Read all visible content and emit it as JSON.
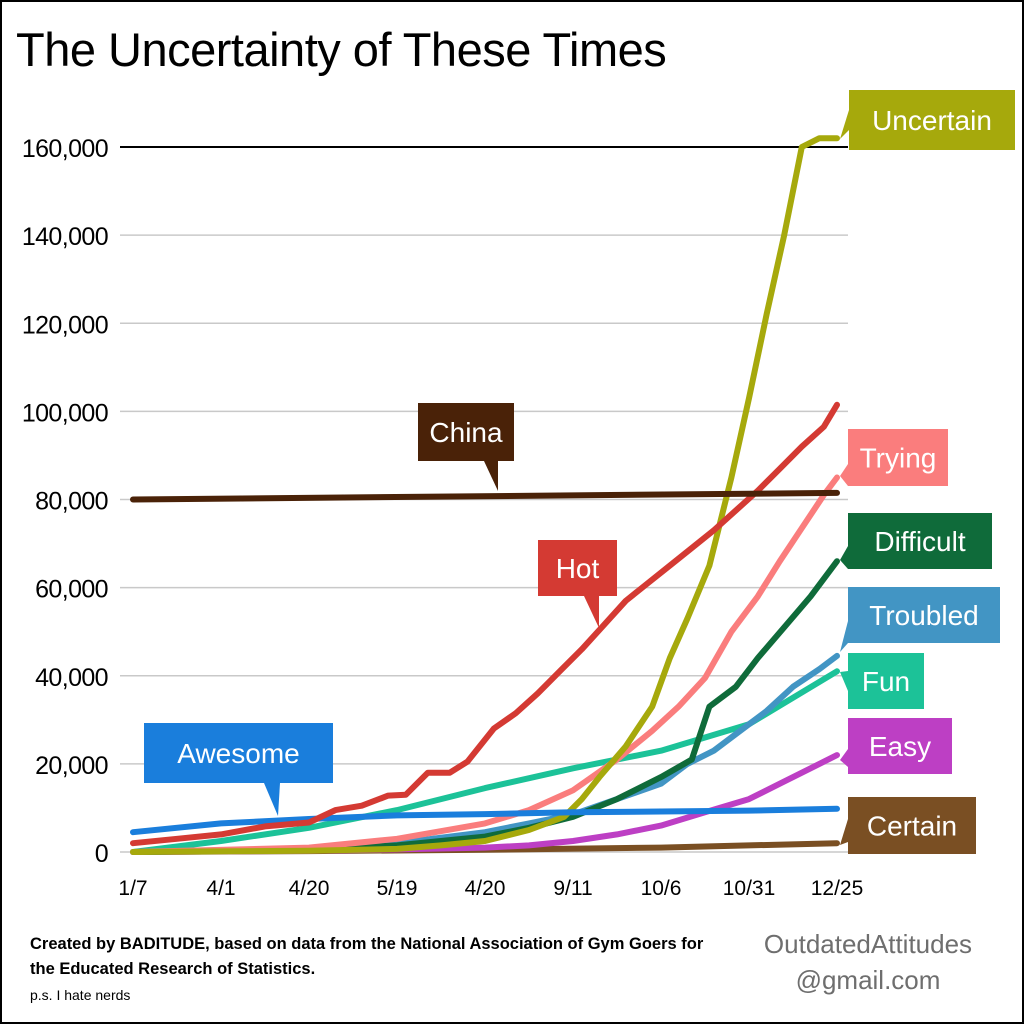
{
  "chart_data": {
    "type": "line",
    "title": "The Uncertainty of These Times",
    "xlabel": "",
    "ylabel": "",
    "categories": [
      "1/7",
      "4/1",
      "4/20",
      "5/19",
      "4/20",
      "9/11",
      "10/6",
      "10/31",
      "12/25"
    ],
    "ylim": [
      0,
      160000
    ],
    "yticks": [
      0,
      20000,
      40000,
      60000,
      80000,
      100000,
      120000,
      140000,
      160000
    ],
    "ytick_labels": [
      "0",
      "20,000",
      "40,000",
      "60,000",
      "80,000",
      "100,000",
      "120,000",
      "140,000",
      "160,000"
    ],
    "grid": true,
    "legend": "none (labels placed at line ends)",
    "series": [
      {
        "name": "China",
        "color": "#4a2208",
        "x": [
          0,
          8
        ],
        "values": [
          80000,
          81500
        ]
      },
      {
        "name": "Hot",
        "color": "#d43a33",
        "x": [
          0,
          0.5,
          1,
          1.5,
          2,
          2.3,
          2.6,
          2.9,
          3.1,
          3.35,
          3.6,
          3.8,
          4.1,
          4.35,
          4.6,
          4.85,
          5.1,
          5.35,
          5.6,
          5.85,
          6.1,
          6.35,
          6.6,
          6.85,
          7.1,
          7.35,
          7.6,
          7.85,
          8.0
        ],
        "values": [
          2000,
          3000,
          4000,
          5800,
          6700,
          9500,
          10500,
          12800,
          13000,
          18000,
          18000,
          20500,
          28000,
          31500,
          36000,
          41000,
          46000,
          51500,
          57000,
          61000,
          65000,
          69000,
          73000,
          77500,
          82000,
          87000,
          92000,
          96500,
          101500
        ]
      },
      {
        "name": "Uncertain",
        "color": "#a6a90c",
        "x": [
          0,
          2,
          3,
          3.5,
          4,
          4.5,
          4.9,
          5.1,
          5.3,
          5.6,
          5.9,
          6.1,
          6.3,
          6.55,
          6.8,
          7.0,
          7.2,
          7.4,
          7.6,
          7.8,
          8.0
        ],
        "values": [
          0,
          300,
          700,
          1500,
          2500,
          5000,
          8000,
          12000,
          17000,
          24000,
          33000,
          44000,
          53000,
          65000,
          85000,
          103000,
          122000,
          140000,
          160000,
          162000,
          162000
        ]
      },
      {
        "name": "Trying",
        "color": "#fa7d7d",
        "x": [
          0,
          2,
          3,
          4,
          4.5,
          5,
          5.5,
          5.9,
          6.2,
          6.5,
          6.8,
          7.1,
          7.35,
          7.6,
          7.85,
          8.0
        ],
        "values": [
          0,
          1000,
          3000,
          6500,
          9500,
          14000,
          21000,
          27500,
          33000,
          39500,
          50000,
          58000,
          66000,
          73500,
          81000,
          85000
        ]
      },
      {
        "name": "Difficult",
        "color": "#0f6b3a",
        "x": [
          0,
          2,
          3,
          4,
          4.5,
          5,
          5.5,
          6.0,
          6.35,
          6.55,
          6.85,
          7.1,
          7.4,
          7.7,
          8.0
        ],
        "values": [
          0,
          500,
          1500,
          3500,
          5500,
          8000,
          12000,
          17000,
          21000,
          33000,
          37500,
          44000,
          51000,
          58000,
          66000
        ]
      },
      {
        "name": "Troubled",
        "color": "#4295c4",
        "x": [
          0,
          2,
          3,
          4,
          4.5,
          5,
          5.5,
          6.0,
          6.3,
          6.6,
          6.9,
          7.2,
          7.5,
          7.8,
          8.0
        ],
        "values": [
          0,
          500,
          2000,
          4500,
          6500,
          8500,
          12000,
          15500,
          20000,
          23000,
          27500,
          32000,
          37500,
          41500,
          44500
        ]
      },
      {
        "name": "Fun",
        "color": "#1cc298",
        "x": [
          0,
          1,
          2,
          3,
          4,
          5,
          6,
          7,
          8
        ],
        "values": [
          0,
          2500,
          5500,
          9500,
          14500,
          19000,
          23000,
          29000,
          41000
        ]
      },
      {
        "name": "Easy",
        "color": "#bd3fc4",
        "x": [
          0,
          2,
          3,
          4,
          4.5,
          5,
          5.5,
          6.0,
          6.5,
          7.0,
          7.35,
          7.7,
          8.0
        ],
        "values": [
          0,
          300,
          600,
          1000,
          1500,
          2500,
          4000,
          6000,
          9000,
          12000,
          15500,
          19000,
          22000
        ]
      },
      {
        "name": "Awesome",
        "color": "#1a7edc",
        "x": [
          0,
          1,
          2,
          3,
          4,
          5,
          6,
          7,
          8
        ],
        "values": [
          4500,
          6500,
          7500,
          8300,
          8600,
          9000,
          9200,
          9400,
          9800
        ]
      },
      {
        "name": "Certain",
        "color": "#7a4f23",
        "x": [
          0,
          2,
          4,
          6,
          8
        ],
        "values": [
          0,
          200,
          500,
          1000,
          2000
        ]
      }
    ]
  },
  "footer": {
    "credit": "Created by BADITUDE, based on data from the National Association of Gym Goers for the Educated Research of Statistics.",
    "ps": "p.s. I hate nerds",
    "contact_line1": "OutdatedAttitudes",
    "contact_line2": "@gmail.com"
  }
}
